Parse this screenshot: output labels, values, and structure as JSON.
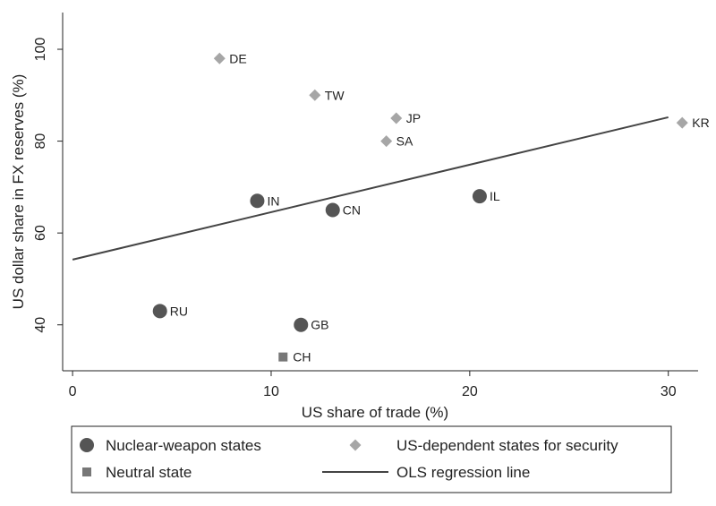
{
  "chart_data": {
    "type": "scatter",
    "xlabel": "US share of trade (%)",
    "ylabel": "US dollar share in FX reserves (%)",
    "xlim": [
      -0.5,
      31.5
    ],
    "ylim": [
      30,
      108
    ],
    "x_ticks": [
      0,
      10,
      20,
      30
    ],
    "y_ticks": [
      40,
      60,
      80,
      100
    ],
    "grid": false,
    "legend_position": "bottom",
    "colors": {
      "nuclear": "#555555",
      "security": "#a6a6a6",
      "neutral": "#777777",
      "regression": "#444444"
    },
    "series": [
      {
        "name": "Nuclear-weapon states",
        "marker": "circle",
        "color_key": "nuclear",
        "points": [
          {
            "label": "IN",
            "x": 9.3,
            "y": 67
          },
          {
            "label": "CN",
            "x": 13.1,
            "y": 65
          },
          {
            "label": "IL",
            "x": 20.5,
            "y": 68
          },
          {
            "label": "RU",
            "x": 4.4,
            "y": 43
          },
          {
            "label": "GB",
            "x": 11.5,
            "y": 40
          }
        ]
      },
      {
        "name": "US-dependent states for security",
        "marker": "diamond",
        "color_key": "security",
        "points": [
          {
            "label": "DE",
            "x": 7.4,
            "y": 98
          },
          {
            "label": "TW",
            "x": 12.2,
            "y": 90
          },
          {
            "label": "JP",
            "x": 16.3,
            "y": 85
          },
          {
            "label": "SA",
            "x": 15.8,
            "y": 80
          },
          {
            "label": "KR",
            "x": 30.7,
            "y": 84
          }
        ]
      },
      {
        "name": "Neutral state",
        "marker": "square",
        "color_key": "neutral",
        "points": [
          {
            "label": "CH",
            "x": 10.6,
            "y": 33
          }
        ]
      }
    ],
    "regression_line": {
      "name": "OLS regression line",
      "x": [
        0,
        30
      ],
      "y": [
        54.2,
        85.2
      ]
    },
    "legend": [
      {
        "label": "Nuclear-weapon states",
        "marker": "circle",
        "color_key": "nuclear"
      },
      {
        "label": "US-dependent states for security",
        "marker": "diamond",
        "color_key": "security"
      },
      {
        "label": "Neutral state",
        "marker": "square",
        "color_key": "neutral"
      },
      {
        "label": "OLS regression line",
        "marker": "line",
        "color_key": "regression"
      }
    ]
  }
}
